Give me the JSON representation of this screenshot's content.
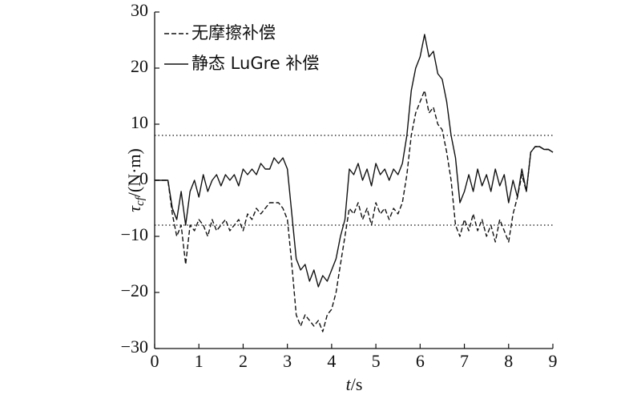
{
  "chart_data": {
    "type": "line",
    "xlabel": {
      "symbol": "t",
      "unit": "/s"
    },
    "ylabel": {
      "symbol": "τ",
      "subscript": "cf",
      "unit": "/(N·m)"
    },
    "x": [
      0,
      0.1,
      0.2,
      0.3,
      0.4,
      0.5,
      0.6,
      0.7,
      0.8,
      0.9,
      1.0,
      1.1,
      1.2,
      1.3,
      1.4,
      1.5,
      1.6,
      1.7,
      1.8,
      1.9,
      2.0,
      2.1,
      2.2,
      2.3,
      2.4,
      2.5,
      2.6,
      2.7,
      2.8,
      2.9,
      3.0,
      3.1,
      3.2,
      3.3,
      3.4,
      3.5,
      3.6,
      3.7,
      3.8,
      3.9,
      4.0,
      4.1,
      4.2,
      4.3,
      4.4,
      4.5,
      4.6,
      4.7,
      4.8,
      4.9,
      5.0,
      5.1,
      5.2,
      5.3,
      5.4,
      5.5,
      5.6,
      5.7,
      5.8,
      5.9,
      6.0,
      6.1,
      6.2,
      6.3,
      6.4,
      6.5,
      6.6,
      6.7,
      6.8,
      6.9,
      7.0,
      7.1,
      7.2,
      7.3,
      7.4,
      7.5,
      7.6,
      7.7,
      7.8,
      7.9,
      8.0,
      8.1,
      8.2,
      8.3,
      8.4,
      8.5,
      8.6,
      8.7,
      8.8,
      8.9,
      9.0
    ],
    "series": [
      {
        "name": "无摩擦补偿",
        "color": "#111111",
        "dash": true,
        "values": [
          0,
          0,
          0,
          0,
          -6,
          -10,
          -8,
          -15,
          -8,
          -9,
          -7,
          -8,
          -10,
          -7,
          -9,
          -8,
          -7,
          -9,
          -8,
          -7,
          -9,
          -6,
          -7,
          -5,
          -6,
          -5,
          -4,
          -4,
          -4,
          -5,
          -7,
          -15,
          -24,
          -26,
          -24,
          -25,
          -26,
          -25,
          -27,
          -24,
          -23,
          -20,
          -15,
          -10,
          -5,
          -6,
          -4,
          -7,
          -5,
          -8,
          -4,
          -6,
          -5,
          -7,
          -5,
          -6,
          -4,
          1,
          8,
          12,
          14,
          16,
          12,
          13,
          10,
          9,
          5,
          0,
          -8,
          -10,
          -7,
          -9,
          -6,
          -9,
          -7,
          -10,
          -8,
          -11,
          -7,
          -9,
          -11,
          -6,
          -3,
          1,
          -2,
          5,
          6,
          6,
          5.5,
          5.5,
          5
        ]
      },
      {
        "name": "静态 LuGre 补偿",
        "color": "#111111",
        "dash": false,
        "values": [
          0,
          0,
          0,
          0,
          -5,
          -7,
          -2,
          -8,
          -2,
          0,
          -3,
          1,
          -2,
          0,
          1,
          -1,
          1,
          0,
          1,
          -1,
          2,
          1,
          2,
          1,
          3,
          2,
          2,
          4,
          3,
          4,
          2,
          -6,
          -14,
          -16,
          -15,
          -18,
          -16,
          -19,
          -17,
          -18,
          -16,
          -14,
          -10,
          -7,
          2,
          1,
          3,
          0,
          2,
          -1,
          3,
          1,
          2,
          0,
          2,
          1,
          3,
          8,
          16,
          20,
          22,
          26,
          22,
          23,
          19,
          18,
          14,
          8,
          4,
          -4,
          -2,
          1,
          -2,
          2,
          -1,
          1,
          -2,
          2,
          -1,
          1,
          -4,
          0,
          -3,
          2,
          -2,
          5,
          6,
          6,
          5.5,
          5.5,
          5
        ]
      }
    ],
    "xlim": [
      0,
      9
    ],
    "xticks": [
      0,
      1,
      2,
      3,
      4,
      5,
      6,
      7,
      8,
      9
    ],
    "ylim": [
      -30,
      30
    ],
    "yticks": [
      {
        "value": -30,
        "label": "−30"
      },
      {
        "value": -20,
        "label": "−20"
      },
      {
        "value": -10,
        "label": "−10"
      },
      0,
      10,
      20,
      30
    ],
    "reference_lines": [
      8,
      -8
    ],
    "legend": "top-left"
  }
}
